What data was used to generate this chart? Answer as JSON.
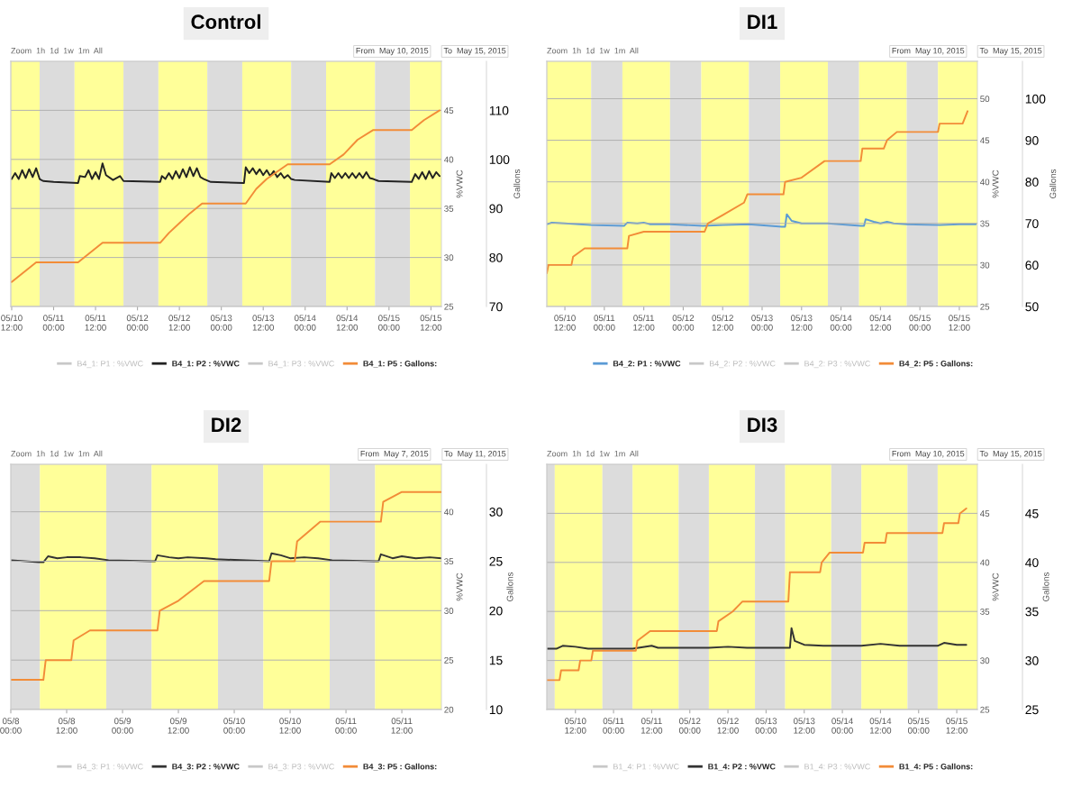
{
  "chart_data": [
    {
      "type": "line",
      "title": "Control",
      "ylabel": "%VWC",
      "y2label": "Gallons",
      "annotations": [
        "Zoom  1h  1d  1w  1m  All",
        "From  May 10, 2015",
        "To  May 15, 2015"
      ],
      "xlim": [
        "2015-05-10T11:45",
        "2015-05-15T15:00"
      ],
      "xticks": [
        {
          "value": "2015-05-10T12:00",
          "label": "05/10\n12:00"
        },
        {
          "value": "2015-05-11T00:00",
          "label": "05/11\n00:00"
        },
        {
          "value": "2015-05-11T12:00",
          "label": "05/11\n12:00"
        },
        {
          "value": "2015-05-12T00:00",
          "label": "05/12\n00:00"
        },
        {
          "value": "2015-05-12T12:00",
          "label": "05/12\n12:00"
        },
        {
          "value": "2015-05-13T00:00",
          "label": "05/13\n00:00"
        },
        {
          "value": "2015-05-13T12:00",
          "label": "05/13\n12:00"
        },
        {
          "value": "2015-05-14T00:00",
          "label": "05/14\n00:00"
        },
        {
          "value": "2015-05-14T12:00",
          "label": "05/14\n12:00"
        },
        {
          "value": "2015-05-15T00:00",
          "label": "05/15\n00:00"
        },
        {
          "value": "2015-05-15T12:00",
          "label": "05/15\n12:00"
        }
      ],
      "ylim": [
        25,
        50
      ],
      "yticks": [
        25,
        30,
        35,
        40,
        45
      ],
      "y2lim": [
        70,
        120
      ],
      "y2ticks": [
        70,
        80,
        90,
        100,
        110
      ],
      "grid": "y",
      "legend": "bottom",
      "bands": [
        {
          "axis": "x",
          "from": "2015-05-10T11:45",
          "to": "2015-05-10T20:00",
          "color": "#ffff99"
        },
        {
          "axis": "x",
          "from": "2015-05-10T20:00",
          "to": "2015-05-11T06:00",
          "color": "#dcdcdc"
        },
        {
          "axis": "x",
          "from": "2015-05-11T06:00",
          "to": "2015-05-11T20:00",
          "color": "#ffff99"
        },
        {
          "axis": "x",
          "from": "2015-05-11T20:00",
          "to": "2015-05-12T06:00",
          "color": "#dcdcdc"
        },
        {
          "axis": "x",
          "from": "2015-05-12T06:00",
          "to": "2015-05-12T20:00",
          "color": "#ffff99"
        },
        {
          "axis": "x",
          "from": "2015-05-12T20:00",
          "to": "2015-05-13T06:00",
          "color": "#dcdcdc"
        },
        {
          "axis": "x",
          "from": "2015-05-13T06:00",
          "to": "2015-05-13T20:00",
          "color": "#ffff99"
        },
        {
          "axis": "x",
          "from": "2015-05-13T20:00",
          "to": "2015-05-14T06:00",
          "color": "#dcdcdc"
        },
        {
          "axis": "x",
          "from": "2015-05-14T06:00",
          "to": "2015-05-14T20:00",
          "color": "#ffff99"
        },
        {
          "axis": "x",
          "from": "2015-05-14T20:00",
          "to": "2015-05-15T06:00",
          "color": "#dcdcdc"
        },
        {
          "axis": "x",
          "from": "2015-05-15T06:00",
          "to": "2015-05-15T15:00",
          "color": "#ffff99"
        }
      ],
      "series": [
        {
          "name": "B4_1: P1 : %VWC",
          "color": "#c8c8c8"
        },
        {
          "name": "B4_1: P2 : %VWC",
          "color": "#222222",
          "x": [
            "2015-05-10T12:00",
            "2015-05-10T13:00",
            "2015-05-10T14:00",
            "2015-05-10T15:00",
            "2015-05-10T16:00",
            "2015-05-10T17:00",
            "2015-05-10T18:00",
            "2015-05-10T19:00",
            "2015-05-10T20:00",
            "2015-05-10T21:00",
            "2015-05-11T00:00",
            "2015-05-11T07:00",
            "2015-05-11T07:30",
            "2015-05-11T09:00",
            "2015-05-11T10:00",
            "2015-05-11T11:00",
            "2015-05-11T12:00",
            "2015-05-11T13:00",
            "2015-05-11T14:00",
            "2015-05-11T15:00",
            "2015-05-11T17:00",
            "2015-05-11T19:00",
            "2015-05-11T20:00",
            "2015-05-12T06:30",
            "2015-05-12T07:00",
            "2015-05-12T08:00",
            "2015-05-12T09:00",
            "2015-05-12T10:00",
            "2015-05-12T11:00",
            "2015-05-12T12:00",
            "2015-05-12T13:00",
            "2015-05-12T14:00",
            "2015-05-12T15:00",
            "2015-05-12T16:00",
            "2015-05-12T17:00",
            "2015-05-12T18:00",
            "2015-05-12T19:00",
            "2015-05-12T21:00",
            "2015-05-13T06:30",
            "2015-05-13T07:00",
            "2015-05-13T08:00",
            "2015-05-13T09:00",
            "2015-05-13T10:00",
            "2015-05-13T11:00",
            "2015-05-13T12:00",
            "2015-05-13T13:00",
            "2015-05-13T14:00",
            "2015-05-13T15:00",
            "2015-05-13T16:00",
            "2015-05-13T17:00",
            "2015-05-13T18:00",
            "2015-05-13T19:00",
            "2015-05-13T20:00",
            "2015-05-13T21:00",
            "2015-05-14T07:00",
            "2015-05-14T07:30",
            "2015-05-14T08:30",
            "2015-05-14T09:30",
            "2015-05-14T10:30",
            "2015-05-14T11:30",
            "2015-05-14T12:30",
            "2015-05-14T13:30",
            "2015-05-14T14:30",
            "2015-05-14T15:30",
            "2015-05-14T16:30",
            "2015-05-14T17:30",
            "2015-05-14T18:30",
            "2015-05-14T19:30",
            "2015-05-14T21:00",
            "2015-05-15T06:30",
            "2015-05-15T07:30",
            "2015-05-15T08:30",
            "2015-05-15T09:30",
            "2015-05-15T10:30",
            "2015-05-15T11:30",
            "2015-05-15T12:30",
            "2015-05-15T13:30",
            "2015-05-15T14:30"
          ],
          "values": [
            38.0,
            38.6,
            38.0,
            38.9,
            38.1,
            39.0,
            38.2,
            39.1,
            38.0,
            37.8,
            37.7,
            37.6,
            38.3,
            38.2,
            38.9,
            38.0,
            38.7,
            38.0,
            39.6,
            38.4,
            37.9,
            38.3,
            37.8,
            37.7,
            38.3,
            38.0,
            38.6,
            38.0,
            38.8,
            38.1,
            39.0,
            38.2,
            39.2,
            38.3,
            39.1,
            38.2,
            38.0,
            37.7,
            37.6,
            39.2,
            38.6,
            39.1,
            38.5,
            39.0,
            38.4,
            38.9,
            38.3,
            38.8,
            38.2,
            38.6,
            38.1,
            38.4,
            38.0,
            37.9,
            37.7,
            38.6,
            38.1,
            38.6,
            38.1,
            38.6,
            38.1,
            38.6,
            38.1,
            38.6,
            38.1,
            38.7,
            38.1,
            38.0,
            37.8,
            37.7,
            38.5,
            38.0,
            38.7,
            38.0,
            38.8,
            38.1,
            38.7,
            38.3
          ]
        },
        {
          "name": "B4_1: P3 : %VWC",
          "color": "#c8c8c8"
        },
        {
          "name": "B4_1: P5 : Gallons:",
          "color": "#f28c38",
          "axis": "y2",
          "x": [
            "2015-05-10T12:00",
            "2015-05-10T19:00",
            "2015-05-11T07:00",
            "2015-05-11T14:00",
            "2015-05-12T06:30",
            "2015-05-12T09:00",
            "2015-05-12T12:00",
            "2015-05-12T15:00",
            "2015-05-12T18:30",
            "2015-05-13T07:00",
            "2015-05-13T10:00",
            "2015-05-13T13:00",
            "2015-05-13T19:00",
            "2015-05-14T07:00",
            "2015-05-14T11:00",
            "2015-05-14T15:00",
            "2015-05-14T19:30",
            "2015-05-15T06:30",
            "2015-05-15T10:00",
            "2015-05-15T14:30"
          ],
          "values": [
            75,
            79,
            79,
            83,
            83,
            85,
            87,
            89,
            91,
            91,
            94,
            96,
            99,
            99,
            101,
            104,
            106,
            106,
            108,
            110
          ]
        }
      ]
    },
    {
      "type": "line",
      "title": "DI1",
      "ylabel": "%VWC",
      "y2label": "Gallons",
      "annotations": [
        "Zoom  1h  1d  1w  1m  All",
        "From  May 10, 2015",
        "To  May 15, 2015"
      ],
      "xlim": [
        "2015-05-10T06:30",
        "2015-05-15T17:30"
      ],
      "xticks": [
        {
          "value": "2015-05-10T12:00",
          "label": "05/10\n12:00"
        },
        {
          "value": "2015-05-11T00:00",
          "label": "05/11\n00:00"
        },
        {
          "value": "2015-05-11T12:00",
          "label": "05/11\n12:00"
        },
        {
          "value": "2015-05-12T00:00",
          "label": "05/12\n00:00"
        },
        {
          "value": "2015-05-12T12:00",
          "label": "05/12\n12:00"
        },
        {
          "value": "2015-05-13T00:00",
          "label": "05/13\n00:00"
        },
        {
          "value": "2015-05-13T12:00",
          "label": "05/13\n12:00"
        },
        {
          "value": "2015-05-14T00:00",
          "label": "05/14\n00:00"
        },
        {
          "value": "2015-05-14T12:00",
          "label": "05/14\n12:00"
        },
        {
          "value": "2015-05-15T00:00",
          "label": "05/15\n00:00"
        },
        {
          "value": "2015-05-15T12:00",
          "label": "05/15\n12:00"
        }
      ],
      "ylim": [
        25,
        54.5
      ],
      "yticks": [
        25,
        30,
        35,
        40,
        45,
        50
      ],
      "y2lim": [
        50,
        109
      ],
      "y2ticks": [
        50,
        60,
        70,
        80,
        90,
        100
      ],
      "grid": "y",
      "legend": "bottom",
      "bands": [
        {
          "axis": "x",
          "from": "2015-05-10T06:30",
          "to": "2015-05-10T20:00",
          "color": "#ffff99"
        },
        {
          "axis": "x",
          "from": "2015-05-10T20:00",
          "to": "2015-05-11T05:30",
          "color": "#dcdcdc"
        },
        {
          "axis": "x",
          "from": "2015-05-11T05:30",
          "to": "2015-05-11T20:00",
          "color": "#ffff99"
        },
        {
          "axis": "x",
          "from": "2015-05-11T20:00",
          "to": "2015-05-12T05:30",
          "color": "#dcdcdc"
        },
        {
          "axis": "x",
          "from": "2015-05-12T05:30",
          "to": "2015-05-12T20:00",
          "color": "#ffff99"
        },
        {
          "axis": "x",
          "from": "2015-05-12T20:00",
          "to": "2015-05-13T05:30",
          "color": "#dcdcdc"
        },
        {
          "axis": "x",
          "from": "2015-05-13T05:30",
          "to": "2015-05-13T20:00",
          "color": "#ffff99"
        },
        {
          "axis": "x",
          "from": "2015-05-13T20:00",
          "to": "2015-05-14T05:30",
          "color": "#dcdcdc"
        },
        {
          "axis": "x",
          "from": "2015-05-14T05:30",
          "to": "2015-05-14T20:00",
          "color": "#ffff99"
        },
        {
          "axis": "x",
          "from": "2015-05-14T20:00",
          "to": "2015-05-15T05:30",
          "color": "#dcdcdc"
        },
        {
          "axis": "x",
          "from": "2015-05-15T05:30",
          "to": "2015-05-15T17:30",
          "color": "#ffff99"
        }
      ],
      "series": [
        {
          "name": "B4_2: P1 : %VWC",
          "color": "#5b9bd5",
          "x": [
            "2015-05-10T06:30",
            "2015-05-10T08:00",
            "2015-05-10T12:00",
            "2015-05-10T20:00",
            "2015-05-11T06:00",
            "2015-05-11T07:00",
            "2015-05-11T10:00",
            "2015-05-11T12:00",
            "2015-05-11T14:00",
            "2015-05-11T20:00",
            "2015-05-12T06:00",
            "2015-05-12T12:00",
            "2015-05-12T20:00",
            "2015-05-13T06:00",
            "2015-05-13T07:00",
            "2015-05-13T07:30",
            "2015-05-13T09:00",
            "2015-05-13T12:00",
            "2015-05-13T20:00",
            "2015-05-14T06:00",
            "2015-05-14T07:00",
            "2015-05-14T07:30",
            "2015-05-14T10:00",
            "2015-05-14T12:00",
            "2015-05-14T14:00",
            "2015-05-14T16:00",
            "2015-05-14T20:00",
            "2015-05-15T06:00",
            "2015-05-15T12:00",
            "2015-05-15T17:00"
          ],
          "values": [
            34.9,
            35.1,
            35.0,
            34.8,
            34.7,
            35.1,
            35.0,
            35.1,
            34.9,
            34.9,
            34.7,
            34.8,
            34.9,
            34.6,
            34.6,
            36.1,
            35.3,
            35.0,
            35.0,
            34.7,
            34.7,
            35.5,
            35.2,
            35.0,
            35.2,
            35.0,
            34.9,
            34.8,
            34.9,
            34.9
          ]
        },
        {
          "name": "B4_2: P2 : %VWC",
          "color": "#c8c8c8"
        },
        {
          "name": "B4_2: P3 : %VWC",
          "color": "#c8c8c8"
        },
        {
          "name": "B4_2: P5 : Gallons:",
          "color": "#f28c38",
          "axis": "y2",
          "x": [
            "2015-05-10T06:30",
            "2015-05-10T07:00",
            "2015-05-10T14:00",
            "2015-05-10T14:30",
            "2015-05-10T18:00",
            "2015-05-11T07:00",
            "2015-05-11T07:30",
            "2015-05-11T12:00",
            "2015-05-12T06:30",
            "2015-05-12T07:30",
            "2015-05-12T12:00",
            "2015-05-12T18:30",
            "2015-05-12T19:30",
            "2015-05-13T06:30",
            "2015-05-13T07:00",
            "2015-05-13T12:00",
            "2015-05-13T19:00",
            "2015-05-14T06:00",
            "2015-05-14T06:30",
            "2015-05-14T13:00",
            "2015-05-14T14:00",
            "2015-05-14T17:00",
            "2015-05-15T05:30",
            "2015-05-15T06:00",
            "2015-05-15T13:00",
            "2015-05-15T14:30"
          ],
          "values": [
            58,
            60,
            60,
            62,
            64,
            64,
            67,
            68,
            68,
            70,
            72,
            75,
            77,
            77,
            80,
            81,
            85,
            85,
            88,
            88,
            90,
            92,
            92,
            94,
            94,
            97
          ]
        }
      ]
    },
    {
      "type": "line",
      "title": "DI2",
      "ylabel": "%VWC",
      "y2label": "Gallons",
      "annotations": [
        "Zoom  1h  1d  1w  1m  All",
        "From  May 7, 2015",
        "To  May 11, 2015"
      ],
      "xlim": [
        "2015-05-08T00:00",
        "2015-05-11T20:30"
      ],
      "xticks": [
        {
          "value": "2015-05-08T00:00",
          "label": "05/8\n00:00"
        },
        {
          "value": "2015-05-08T12:00",
          "label": "05/8\n12:00"
        },
        {
          "value": "2015-05-09T00:00",
          "label": "05/9\n00:00"
        },
        {
          "value": "2015-05-09T12:00",
          "label": "05/9\n12:00"
        },
        {
          "value": "2015-05-10T00:00",
          "label": "05/10\n00:00"
        },
        {
          "value": "2015-05-10T12:00",
          "label": "05/10\n12:00"
        },
        {
          "value": "2015-05-11T00:00",
          "label": "05/11\n00:00"
        },
        {
          "value": "2015-05-11T12:00",
          "label": "05/11\n12:00"
        }
      ],
      "ylim": [
        20,
        44.8
      ],
      "yticks": [
        20,
        25,
        30,
        35,
        40
      ],
      "y2lim": [
        10,
        34.8
      ],
      "y2ticks": [
        10,
        15,
        20,
        25,
        30
      ],
      "grid": "y",
      "legend": "bottom",
      "bands": [
        {
          "axis": "x",
          "from": "2015-05-08T00:00",
          "to": "2015-05-08T06:15",
          "color": "#dcdcdc"
        },
        {
          "axis": "x",
          "from": "2015-05-08T06:15",
          "to": "2015-05-08T20:30",
          "color": "#ffff99"
        },
        {
          "axis": "x",
          "from": "2015-05-08T20:30",
          "to": "2015-05-09T06:15",
          "color": "#dcdcdc"
        },
        {
          "axis": "x",
          "from": "2015-05-09T06:15",
          "to": "2015-05-09T20:30",
          "color": "#ffff99"
        },
        {
          "axis": "x",
          "from": "2015-05-09T20:30",
          "to": "2015-05-10T06:15",
          "color": "#dcdcdc"
        },
        {
          "axis": "x",
          "from": "2015-05-10T06:15",
          "to": "2015-05-10T20:30",
          "color": "#ffff99"
        },
        {
          "axis": "x",
          "from": "2015-05-10T20:30",
          "to": "2015-05-11T06:15",
          "color": "#dcdcdc"
        },
        {
          "axis": "x",
          "from": "2015-05-11T06:15",
          "to": "2015-05-11T20:30",
          "color": "#ffff99"
        }
      ],
      "series": [
        {
          "name": "B4_3: P1 : %VWC",
          "color": "#c8c8c8"
        },
        {
          "name": "B4_3: P2 : %VWC",
          "color": "#333333",
          "x": [
            "2015-05-08T00:00",
            "2015-05-08T06:00",
            "2015-05-08T07:00",
            "2015-05-08T08:00",
            "2015-05-08T10:00",
            "2015-05-08T12:00",
            "2015-05-08T15:00",
            "2015-05-08T18:00",
            "2015-05-08T21:00",
            "2015-05-09T06:00",
            "2015-05-09T07:00",
            "2015-05-09T07:30",
            "2015-05-09T10:00",
            "2015-05-09T12:00",
            "2015-05-09T14:00",
            "2015-05-09T18:00",
            "2015-05-09T20:00",
            "2015-05-10T07:30",
            "2015-05-10T08:00",
            "2015-05-10T10:00",
            "2015-05-10T12:00",
            "2015-05-10T15:00",
            "2015-05-10T18:00",
            "2015-05-10T21:00",
            "2015-05-11T06:00",
            "2015-05-11T07:00",
            "2015-05-11T07:30",
            "2015-05-11T10:00",
            "2015-05-11T12:00",
            "2015-05-11T15:00",
            "2015-05-11T18:00",
            "2015-05-11T20:30"
          ],
          "values": [
            35.1,
            34.9,
            34.9,
            35.5,
            35.3,
            35.4,
            35.4,
            35.3,
            35.1,
            35.0,
            35.0,
            35.6,
            35.4,
            35.3,
            35.4,
            35.3,
            35.2,
            35.0,
            35.8,
            35.6,
            35.3,
            35.4,
            35.3,
            35.1,
            35.0,
            35.0,
            35.7,
            35.3,
            35.5,
            35.3,
            35.4,
            35.3
          ]
        },
        {
          "name": "B4_3: P3 : %VWC",
          "color": "#c8c8c8"
        },
        {
          "name": "B4_3: P5 : Gallons:",
          "color": "#f28c38",
          "axis": "y2",
          "x": [
            "2015-05-08T00:00",
            "2015-05-08T07:00",
            "2015-05-08T07:30",
            "2015-05-08T13:00",
            "2015-05-08T13:30",
            "2015-05-08T17:00",
            "2015-05-09T07:30",
            "2015-05-09T08:00",
            "2015-05-09T12:00",
            "2015-05-09T17:30",
            "2015-05-10T07:30",
            "2015-05-10T08:00",
            "2015-05-10T13:00",
            "2015-05-10T13:30",
            "2015-05-10T16:00",
            "2015-05-10T18:30",
            "2015-05-11T07:30",
            "2015-05-11T08:00",
            "2015-05-11T12:00",
            "2015-05-11T20:30"
          ],
          "values": [
            13,
            13,
            15,
            15,
            17,
            18,
            18,
            20,
            21,
            23,
            23,
            25,
            25,
            27,
            28,
            29,
            29,
            31,
            32,
            32
          ]
        }
      ]
    },
    {
      "type": "line",
      "title": "DI3",
      "ylabel": "%VWC",
      "y2label": "Gallons",
      "annotations": [
        "Zoom  1h  1d  1w  1m  All",
        "From  May 10, 2015",
        "To  May 15, 2015"
      ],
      "xlim": [
        "2015-05-10T03:00",
        "2015-05-15T18:30"
      ],
      "xticks": [
        {
          "value": "2015-05-10T12:00",
          "label": "05/10\n12:00"
        },
        {
          "value": "2015-05-11T00:00",
          "label": "05/11\n00:00"
        },
        {
          "value": "2015-05-11T12:00",
          "label": "05/11\n12:00"
        },
        {
          "value": "2015-05-12T00:00",
          "label": "05/12\n00:00"
        },
        {
          "value": "2015-05-12T12:00",
          "label": "05/12\n12:00"
        },
        {
          "value": "2015-05-13T00:00",
          "label": "05/13\n00:00"
        },
        {
          "value": "2015-05-13T12:00",
          "label": "05/13\n12:00"
        },
        {
          "value": "2015-05-14T00:00",
          "label": "05/14\n00:00"
        },
        {
          "value": "2015-05-14T12:00",
          "label": "05/14\n12:00"
        },
        {
          "value": "2015-05-15T00:00",
          "label": "05/15\n00:00"
        },
        {
          "value": "2015-05-15T12:00",
          "label": "05/15\n12:00"
        }
      ],
      "ylim": [
        25,
        50
      ],
      "yticks": [
        25,
        30,
        35,
        40,
        45
      ],
      "y2lim": [
        25,
        50
      ],
      "y2ticks": [
        25,
        30,
        35,
        40,
        45
      ],
      "grid": "y",
      "legend": "bottom",
      "bands": [
        {
          "axis": "x",
          "from": "2015-05-10T03:00",
          "to": "2015-05-10T05:30",
          "color": "#dcdcdc"
        },
        {
          "axis": "x",
          "from": "2015-05-10T05:30",
          "to": "2015-05-10T20:30",
          "color": "#ffff99"
        },
        {
          "axis": "x",
          "from": "2015-05-10T20:30",
          "to": "2015-05-11T06:00",
          "color": "#dcdcdc"
        },
        {
          "axis": "x",
          "from": "2015-05-11T06:00",
          "to": "2015-05-11T20:30",
          "color": "#ffff99"
        },
        {
          "axis": "x",
          "from": "2015-05-11T20:30",
          "to": "2015-05-12T06:00",
          "color": "#dcdcdc"
        },
        {
          "axis": "x",
          "from": "2015-05-12T06:00",
          "to": "2015-05-12T20:30",
          "color": "#ffff99"
        },
        {
          "axis": "x",
          "from": "2015-05-12T20:30",
          "to": "2015-05-13T06:00",
          "color": "#dcdcdc"
        },
        {
          "axis": "x",
          "from": "2015-05-13T06:00",
          "to": "2015-05-13T20:30",
          "color": "#ffff99"
        },
        {
          "axis": "x",
          "from": "2015-05-13T20:30",
          "to": "2015-05-14T06:00",
          "color": "#dcdcdc"
        },
        {
          "axis": "x",
          "from": "2015-05-14T06:00",
          "to": "2015-05-14T20:30",
          "color": "#ffff99"
        },
        {
          "axis": "x",
          "from": "2015-05-14T20:30",
          "to": "2015-05-15T06:00",
          "color": "#dcdcdc"
        },
        {
          "axis": "x",
          "from": "2015-05-15T06:00",
          "to": "2015-05-15T18:30",
          "color": "#ffff99"
        }
      ],
      "series": [
        {
          "name": "B1_4: P1 : %VWC",
          "color": "#c8c8c8"
        },
        {
          "name": "B1_4: P2 : %VWC",
          "color": "#333333",
          "x": [
            "2015-05-10T03:00",
            "2015-05-10T06:00",
            "2015-05-10T08:00",
            "2015-05-10T12:00",
            "2015-05-10T16:00",
            "2015-05-11T06:00",
            "2015-05-11T12:00",
            "2015-05-11T14:00",
            "2015-05-11T18:00",
            "2015-05-12T06:00",
            "2015-05-12T12:00",
            "2015-05-12T18:00",
            "2015-05-13T06:00",
            "2015-05-13T07:30",
            "2015-05-13T08:00",
            "2015-05-13T09:00",
            "2015-05-13T12:00",
            "2015-05-13T18:00",
            "2015-05-14T06:00",
            "2015-05-14T12:00",
            "2015-05-14T18:00",
            "2015-05-15T06:00",
            "2015-05-15T08:00",
            "2015-05-15T12:00",
            "2015-05-15T15:00"
          ],
          "values": [
            31.2,
            31.2,
            31.5,
            31.4,
            31.2,
            31.2,
            31.5,
            31.3,
            31.3,
            31.3,
            31.4,
            31.3,
            31.3,
            31.3,
            33.3,
            32.0,
            31.6,
            31.5,
            31.5,
            31.7,
            31.5,
            31.5,
            31.8,
            31.6,
            31.6
          ]
        },
        {
          "name": "B1_4: P3 : %VWC",
          "color": "#c8c8c8"
        },
        {
          "name": "B1_4: P5 : Gallons:",
          "color": "#f28c38",
          "axis": "y2",
          "x": [
            "2015-05-10T03:00",
            "2015-05-10T07:00",
            "2015-05-10T07:30",
            "2015-05-10T13:00",
            "2015-05-10T13:30",
            "2015-05-10T17:00",
            "2015-05-10T17:30",
            "2015-05-11T07:00",
            "2015-05-11T07:30",
            "2015-05-11T11:30",
            "2015-05-12T08:30",
            "2015-05-12T09:00",
            "2015-05-12T13:30",
            "2015-05-12T16:30",
            "2015-05-13T07:00",
            "2015-05-13T07:30",
            "2015-05-13T17:00",
            "2015-05-13T17:30",
            "2015-05-13T20:00",
            "2015-05-14T06:30",
            "2015-05-14T07:00",
            "2015-05-14T13:30",
            "2015-05-14T14:00",
            "2015-05-15T07:30",
            "2015-05-15T08:00",
            "2015-05-15T12:30",
            "2015-05-15T13:00",
            "2015-05-15T15:00"
          ],
          "values": [
            28,
            28,
            29,
            29,
            30,
            30,
            31,
            31,
            32,
            33,
            33,
            34,
            35,
            36,
            36,
            39,
            39,
            40,
            41,
            41,
            42,
            42,
            43,
            43,
            44,
            44,
            45,
            45.5
          ]
        }
      ]
    }
  ]
}
